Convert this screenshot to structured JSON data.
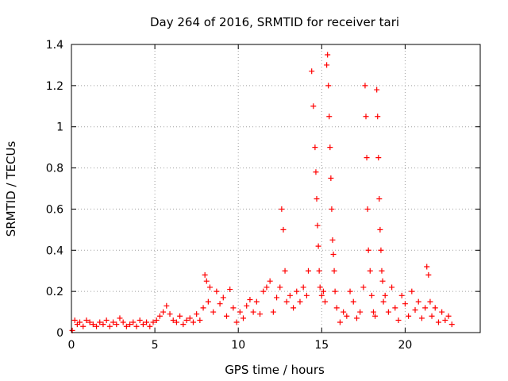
{
  "chart_data": {
    "type": "scatter",
    "title": "Day 264 of 2016, SRMTID for receiver tari",
    "xlabel": "GPS time / hours",
    "ylabel": "SRMTID / TECUs",
    "xlim": [
      0,
      24.5
    ],
    "ylim": [
      0,
      1.4
    ],
    "xticks": [
      0,
      5,
      10,
      15,
      20
    ],
    "yticks": [
      0,
      0.2,
      0.4,
      0.6,
      0.8,
      1,
      1.2,
      1.4
    ],
    "ytick_labels": [
      "0",
      "0.2",
      "0.4",
      "0.6",
      "0.8",
      "1",
      "1.2",
      "1.4"
    ],
    "grid": true,
    "marker": "plus",
    "color": "#ff0000",
    "series": [
      {
        "name": "SRMTID",
        "x": [
          0.05,
          0.2,
          0.35,
          0.5,
          0.7,
          0.9,
          1.1,
          1.3,
          1.5,
          1.7,
          1.9,
          2.1,
          2.3,
          2.5,
          2.7,
          2.9,
          3.1,
          3.3,
          3.5,
          3.7,
          3.9,
          4.1,
          4.3,
          4.5,
          4.7,
          4.9,
          5.1,
          5.3,
          5.5,
          5.7,
          5.9,
          6.1,
          6.3,
          6.5,
          6.7,
          6.9,
          7.1,
          7.3,
          7.5,
          7.7,
          7.9,
          8.0,
          8.1,
          8.2,
          8.3,
          8.5,
          8.7,
          8.9,
          9.1,
          9.3,
          9.5,
          9.7,
          9.9,
          10.1,
          10.3,
          10.5,
          10.7,
          10.9,
          11.1,
          11.3,
          11.5,
          11.7,
          11.9,
          12.1,
          12.3,
          12.5,
          12.6,
          12.7,
          12.8,
          12.9,
          13.1,
          13.3,
          13.5,
          13.7,
          13.9,
          14.1,
          14.2,
          14.4,
          14.5,
          14.6,
          14.65,
          14.7,
          14.75,
          14.8,
          14.85,
          14.9,
          15.0,
          15.1,
          15.2,
          15.3,
          15.35,
          15.4,
          15.45,
          15.5,
          15.55,
          15.6,
          15.65,
          15.7,
          15.75,
          15.8,
          15.9,
          16.1,
          16.3,
          16.5,
          16.7,
          16.9,
          17.1,
          17.3,
          17.5,
          17.6,
          17.65,
          17.7,
          17.75,
          17.8,
          17.9,
          18.0,
          18.1,
          18.2,
          18.3,
          18.35,
          18.4,
          18.45,
          18.5,
          18.55,
          18.6,
          18.65,
          18.7,
          18.8,
          19.0,
          19.2,
          19.4,
          19.6,
          19.8,
          20.0,
          20.2,
          20.4,
          20.6,
          20.8,
          21.0,
          21.2,
          21.3,
          21.4,
          21.5,
          21.6,
          21.8,
          22.0,
          22.2,
          22.4,
          22.6,
          22.8
        ],
        "y": [
          0.01,
          0.06,
          0.04,
          0.05,
          0.03,
          0.06,
          0.05,
          0.04,
          0.03,
          0.05,
          0.04,
          0.06,
          0.03,
          0.05,
          0.04,
          0.07,
          0.05,
          0.03,
          0.04,
          0.05,
          0.03,
          0.06,
          0.04,
          0.05,
          0.03,
          0.05,
          0.06,
          0.08,
          0.1,
          0.13,
          0.09,
          0.06,
          0.05,
          0.08,
          0.04,
          0.06,
          0.07,
          0.05,
          0.09,
          0.06,
          0.12,
          0.28,
          0.25,
          0.15,
          0.22,
          0.1,
          0.2,
          0.14,
          0.17,
          0.08,
          0.21,
          0.12,
          0.05,
          0.1,
          0.07,
          0.13,
          0.16,
          0.1,
          0.15,
          0.09,
          0.2,
          0.22,
          0.25,
          0.1,
          0.17,
          0.22,
          0.6,
          0.5,
          0.3,
          0.15,
          0.18,
          0.12,
          0.2,
          0.15,
          0.22,
          0.18,
          0.3,
          1.27,
          1.1,
          0.9,
          0.78,
          0.65,
          0.52,
          0.42,
          0.3,
          0.22,
          0.18,
          0.2,
          0.15,
          1.3,
          1.35,
          1.2,
          1.05,
          0.9,
          0.75,
          0.6,
          0.45,
          0.38,
          0.3,
          0.2,
          0.12,
          0.05,
          0.1,
          0.08,
          0.2,
          0.15,
          0.07,
          0.1,
          0.22,
          1.2,
          1.05,
          0.85,
          0.6,
          0.4,
          0.3,
          0.18,
          0.1,
          0.08,
          1.18,
          1.05,
          0.85,
          0.65,
          0.5,
          0.4,
          0.3,
          0.25,
          0.15,
          0.18,
          0.1,
          0.22,
          0.12,
          0.06,
          0.18,
          0.14,
          0.08,
          0.2,
          0.11,
          0.15,
          0.07,
          0.12,
          0.32,
          0.28,
          0.15,
          0.08,
          0.12,
          0.05,
          0.1,
          0.06,
          0.08,
          0.04
        ]
      }
    ]
  }
}
